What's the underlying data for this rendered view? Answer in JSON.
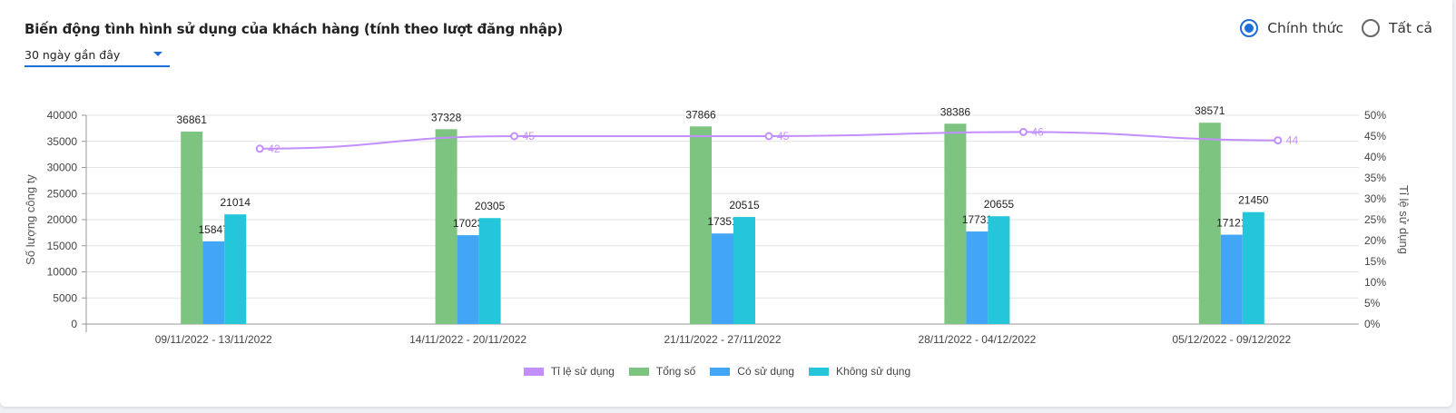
{
  "header": {
    "title": "Biến động tình hình sử dụng của khách hàng (tính theo lượt đăng nhập)",
    "period_select": "30 ngày gần đây"
  },
  "filter": {
    "options": [
      {
        "label": "Chính thức",
        "checked": true
      },
      {
        "label": "Tất cả",
        "checked": false
      }
    ]
  },
  "colors": {
    "total": "#7cc47f",
    "used": "#42a5f5",
    "unused": "#26c6da",
    "rate": "#c38fff",
    "accent": "#1e6fd9"
  },
  "chart_data": {
    "type": "bar",
    "categories": [
      "09/11/2022 - 13/11/2022",
      "14/11/2022 - 20/11/2022",
      "21/11/2022 - 27/11/2022",
      "28/11/2022 - 04/12/2022",
      "05/12/2022 - 09/12/2022"
    ],
    "series": [
      {
        "name": "Tổng số",
        "values": [
          36861,
          37328,
          37866,
          38386,
          38571
        ],
        "axis": "left"
      },
      {
        "name": "Có sử dụng",
        "values": [
          15847,
          17023,
          17351,
          17731,
          17121
        ],
        "axis": "left"
      },
      {
        "name": "Không sử dụng",
        "values": [
          21014,
          20305,
          20515,
          20655,
          21450
        ],
        "axis": "left"
      },
      {
        "name": "Tỉ lệ sử dụng",
        "type": "line",
        "values": [
          42,
          45,
          45,
          46,
          44
        ],
        "axis": "right"
      }
    ],
    "legend_order": [
      "Tỉ lệ sử dụng",
      "Tổng số",
      "Có sử dụng",
      "Không sử dụng"
    ],
    "ylabel": "Số lượng công ty",
    "y2label": "Tỉ lệ sử dụng",
    "ylim": [
      0,
      40000
    ],
    "yticks": [
      "0",
      "5000",
      "10000",
      "15000",
      "20000",
      "25000",
      "30000",
      "35000",
      "40000"
    ],
    "y2lim": [
      0,
      50
    ],
    "y2ticks": [
      "0%",
      "5%",
      "10%",
      "15%",
      "20%",
      "25%",
      "30%",
      "35%",
      "40%",
      "45%",
      "50%"
    ],
    "grid": true,
    "legend_position": "bottom"
  }
}
